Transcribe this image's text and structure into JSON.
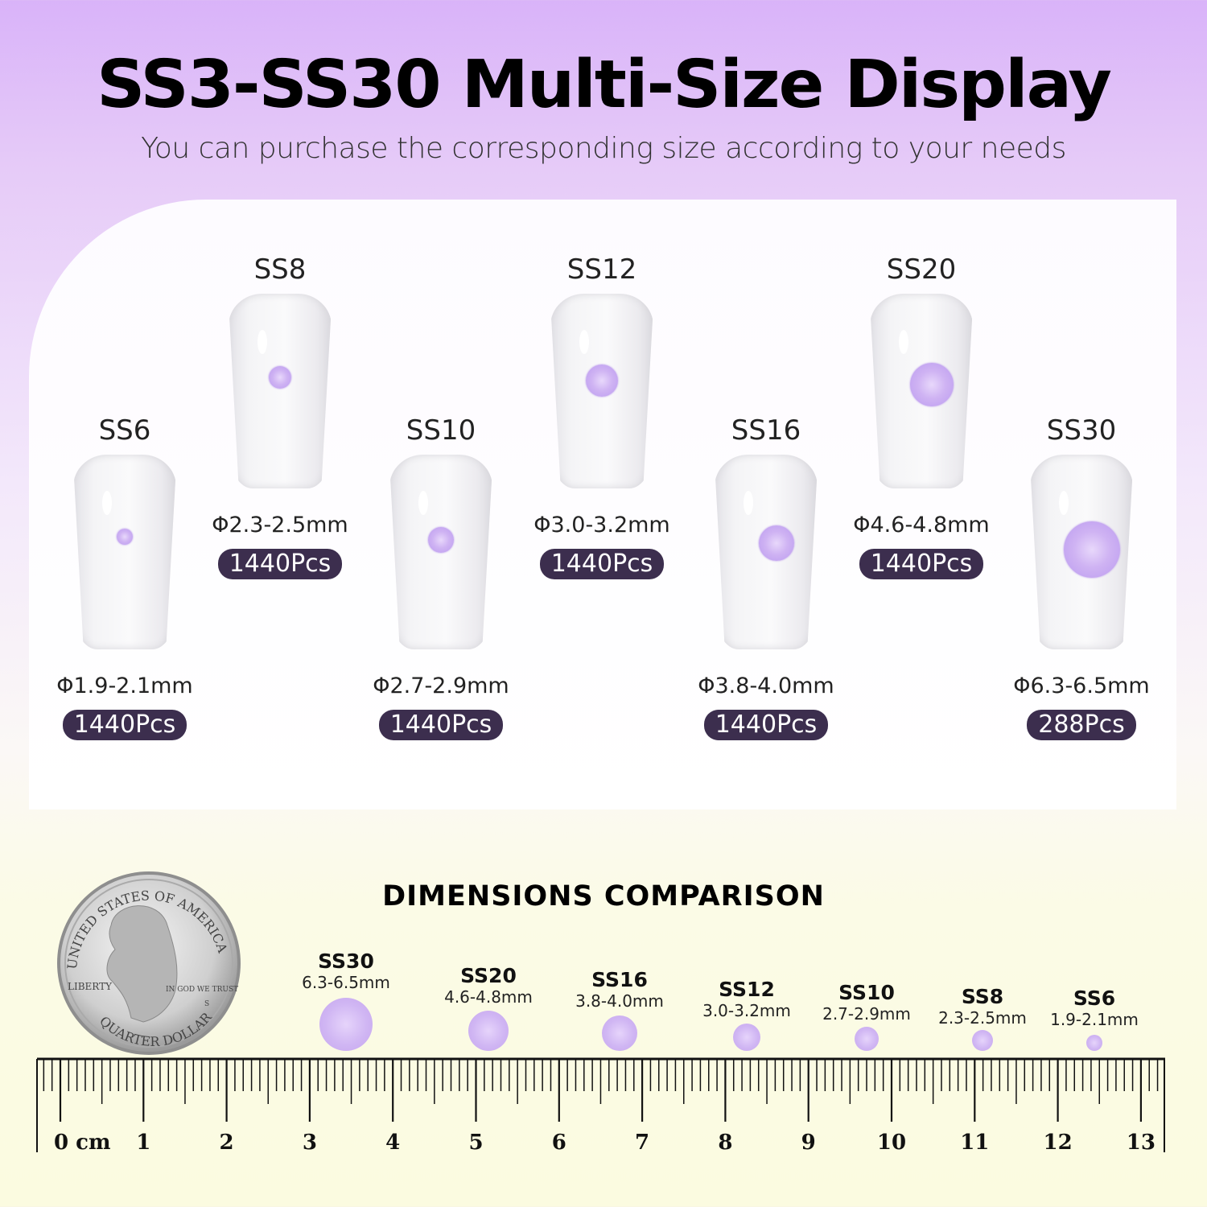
{
  "header": {
    "title": "SS3-SS30 Multi-Size Display",
    "subtitle": "You can purchase the corresponding size according to your needs"
  },
  "colors": {
    "gem": "#c9aaf1",
    "badge": "#3c2e4e",
    "top_bg": "#d9b3f9",
    "bottom_bg": "#fbfbe0"
  },
  "sizes": [
    {
      "name": "SS6",
      "dimension": "Φ1.9-2.1mm",
      "count": "1440Pcs"
    },
    {
      "name": "SS8",
      "dimension": "Φ2.3-2.5mm",
      "count": "1440Pcs"
    },
    {
      "name": "SS10",
      "dimension": "Φ2.7-2.9mm",
      "count": "1440Pcs"
    },
    {
      "name": "SS12",
      "dimension": "Φ3.0-3.2mm",
      "count": "1440Pcs"
    },
    {
      "name": "SS16",
      "dimension": "Φ3.8-4.0mm",
      "count": "1440Pcs"
    },
    {
      "name": "SS20",
      "dimension": "Φ4.6-4.8mm",
      "count": "1440Pcs"
    },
    {
      "name": "SS30",
      "dimension": "Φ6.3-6.5mm",
      "count": "288Pcs"
    }
  ],
  "comparison": {
    "title": "DIMENSIONS COMPARISON",
    "items": [
      {
        "name": "SS30",
        "mm": "6.3-6.5mm"
      },
      {
        "name": "SS20",
        "mm": "4.6-4.8mm"
      },
      {
        "name": "SS16",
        "mm": "3.8-4.0mm"
      },
      {
        "name": "SS12",
        "mm": "3.0-3.2mm"
      },
      {
        "name": "SS10",
        "mm": "2.7-2.9mm"
      },
      {
        "name": "SS8",
        "mm": "2.3-2.5mm"
      },
      {
        "name": "SS6",
        "mm": "1.9-2.1mm"
      }
    ],
    "coin": {
      "top_text": "UNITED STATES OF AMERICA",
      "bottom_text": "QUARTER DOLLAR",
      "left_text": "LIBERTY",
      "motto": "IN GOD WE TRUST",
      "mint": "S"
    },
    "ruler": {
      "unit": "cm",
      "labels": [
        "0 cm",
        "1",
        "2",
        "3",
        "4",
        "5",
        "6",
        "7",
        "8",
        "9",
        "10",
        "11",
        "12",
        "13"
      ]
    }
  }
}
